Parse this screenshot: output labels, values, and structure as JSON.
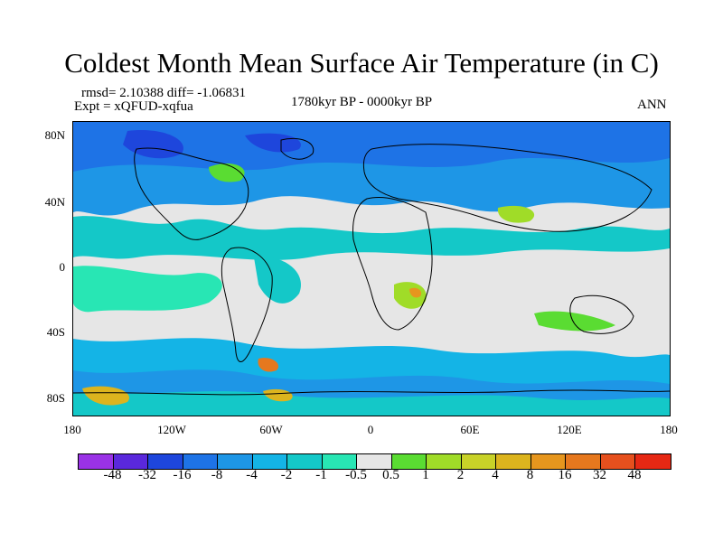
{
  "title": "Coldest Month Mean Surface Air Temperature (in C)",
  "info": {
    "rmsd_line": "rmsd= 2.10388 diff= -1.06831",
    "expt_line": "Expt = xQFUD-xqfua",
    "period": "1780kyr BP - 0000kyr BP",
    "season": "ANN"
  },
  "map": {
    "projection": "cylindrical equidistant",
    "x_range": [
      -180,
      180
    ],
    "y_range": [
      -90,
      90
    ],
    "y_tick_labels": [
      "80N",
      "40N",
      "0",
      "40S",
      "80S"
    ],
    "x_tick_labels": [
      "180",
      "120W",
      "60W",
      "0",
      "60E",
      "120E",
      "180"
    ]
  },
  "colorbar": {
    "colors": [
      "#9a32e6",
      "#5a28dc",
      "#1e46dc",
      "#1e73e6",
      "#1e96e6",
      "#14b4e6",
      "#14c8c8",
      "#28e6b4",
      "#e6e6e6",
      "#5adc32",
      "#a0dc28",
      "#c8d228",
      "#dcb41e",
      "#e6961e",
      "#e6781e",
      "#e6501e",
      "#e62814"
    ],
    "labels": [
      "-48",
      "-32",
      "-16",
      "-8",
      "-4",
      "-2",
      "-1",
      "-0.5",
      "0.5",
      "1",
      "2",
      "4",
      "8",
      "16",
      "32",
      "48"
    ]
  }
}
